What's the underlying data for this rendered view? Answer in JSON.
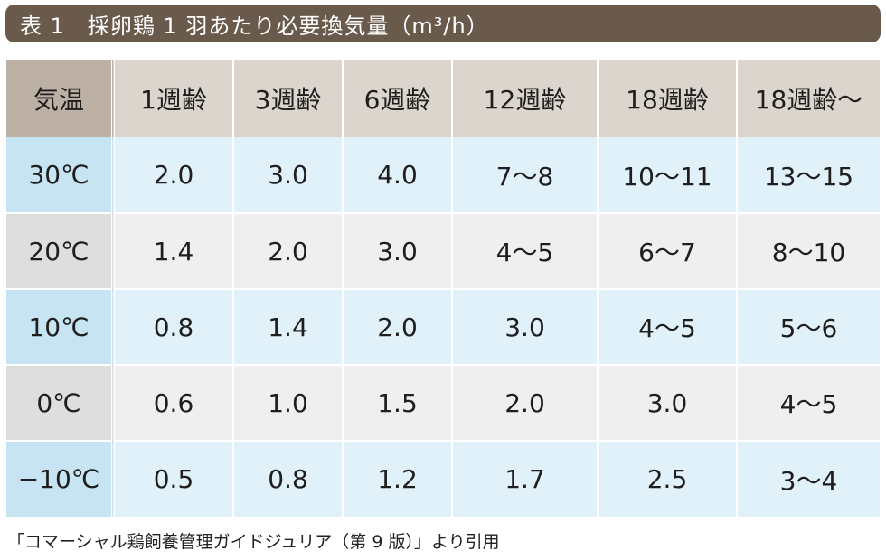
{
  "title": "表 1　採卵鶏 1 羽あたり必要換気量（m³/h）",
  "table": {
    "corner_label": "気温",
    "columns": [
      "1週齢",
      "3週齢",
      "6週齢",
      "12週齢",
      "18週齢",
      "18週齢〜"
    ],
    "rows": [
      {
        "temp": "30℃",
        "values": [
          "2.0",
          "3.0",
          "4.0",
          "7〜8",
          "10〜11",
          "13〜15"
        ]
      },
      {
        "temp": "20℃",
        "values": [
          "1.4",
          "2.0",
          "3.0",
          "4〜5",
          "6〜7",
          "8〜10"
        ]
      },
      {
        "temp": "10℃",
        "values": [
          "0.8",
          "1.4",
          "2.0",
          "3.0",
          "4〜5",
          "5〜6"
        ]
      },
      {
        "temp": "0℃",
        "values": [
          "0.6",
          "1.0",
          "1.5",
          "2.0",
          "3.0",
          "4〜5"
        ]
      },
      {
        "temp": "−10℃",
        "values": [
          "0.5",
          "0.8",
          "1.2",
          "1.7",
          "2.5",
          "3〜4"
        ]
      }
    ]
  },
  "source": "「コマーシャル鶏飼養管理ガイドジュリア（第 9 版）」より引用",
  "colors": {
    "title_bg": "#6a5a4c",
    "header_corner": "#bdb0a4",
    "header_bg": "#dcd5cd",
    "row_blue_label": "#c7e4f3",
    "row_blue": "#e1f1fa",
    "row_grey_label": "#dedede",
    "row_grey": "#efefef"
  }
}
